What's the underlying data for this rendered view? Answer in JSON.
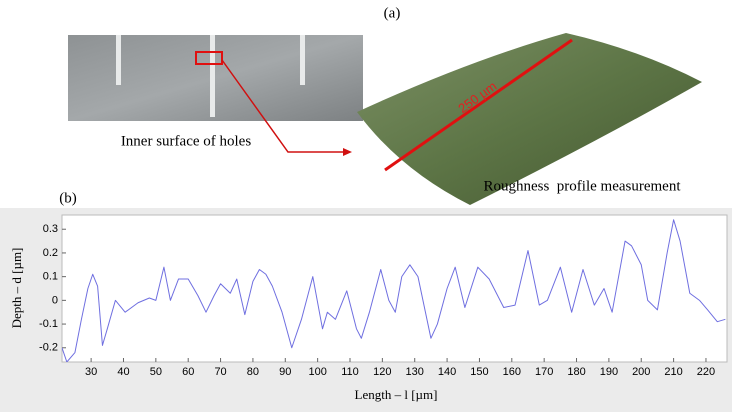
{
  "panel_a": {
    "label": "(a)",
    "photo_caption": "Inner surface of holes",
    "scale_label": "250 µm",
    "measurement_caption": "Roughness  profile measurement"
  },
  "chart_data": {
    "type": "line",
    "label": "(b)",
    "x_label": "Length – l [µm]",
    "y_label": "Depth – d [µm]",
    "x": [
      21,
      22.5,
      25,
      27,
      29,
      30.5,
      32,
      33.5,
      35,
      37.5,
      40.5,
      44.5,
      48,
      50,
      52.5,
      54.5,
      57,
      60,
      63,
      65.5,
      68,
      70,
      73,
      75,
      77.5,
      80,
      82,
      84,
      86,
      89,
      92,
      95,
      98.5,
      101.5,
      103,
      105.5,
      109,
      112,
      113.5,
      116,
      119.5,
      122,
      124,
      126,
      128.5,
      131,
      135,
      137,
      140,
      142.5,
      145.5,
      149.5,
      153,
      157.5,
      161,
      165,
      168.5,
      171,
      175,
      178.5,
      182,
      185.5,
      188.5,
      191,
      195,
      197,
      200,
      202,
      205,
      208,
      210,
      212,
      215,
      218,
      220.5,
      223.5,
      226
    ],
    "values": [
      -0.2,
      -0.26,
      -0.22,
      -0.08,
      0.05,
      0.11,
      0.06,
      -0.19,
      -0.12,
      0.0,
      -0.05,
      -0.01,
      0.01,
      0.0,
      0.14,
      0.0,
      0.09,
      0.09,
      0.02,
      -0.05,
      0.02,
      0.07,
      0.03,
      0.09,
      -0.06,
      0.08,
      0.13,
      0.11,
      0.06,
      -0.05,
      -0.2,
      -0.08,
      0.1,
      -0.12,
      -0.05,
      -0.08,
      0.04,
      -0.12,
      -0.16,
      -0.05,
      0.13,
      0.0,
      -0.05,
      0.1,
      0.15,
      0.1,
      -0.16,
      -0.1,
      0.05,
      0.14,
      -0.03,
      0.14,
      0.09,
      -0.03,
      -0.02,
      0.21,
      -0.02,
      0.0,
      0.14,
      -0.05,
      0.13,
      -0.02,
      0.05,
      -0.05,
      0.25,
      0.23,
      0.15,
      0.0,
      -0.04,
      0.2,
      0.34,
      0.25,
      0.03,
      0.0,
      -0.04,
      -0.09,
      -0.08
    ],
    "color": "#6f6fe0",
    "xlim": [
      21,
      226.5
    ],
    "ylim": [
      -0.26,
      0.36
    ],
    "xticks": [
      30,
      40,
      50,
      60,
      70,
      80,
      90,
      100,
      110,
      120,
      130,
      140,
      150,
      160,
      170,
      180,
      190,
      200,
      210,
      220
    ],
    "yticks": [
      -0.2,
      -0.1,
      0,
      0.1,
      0.2,
      0.3
    ],
    "grid": false
  }
}
